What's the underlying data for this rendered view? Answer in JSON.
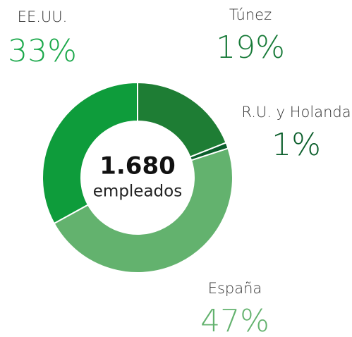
{
  "chart_data": {
    "type": "donut",
    "categories": [
      "Túnez",
      "R.U. y Holanda",
      "España",
      "EE.UU."
    ],
    "values": [
      19,
      1,
      47,
      33
    ],
    "value_labels": [
      "19%",
      "1%",
      "47%",
      "33%"
    ],
    "colors": [
      "#1e7d34",
      "#0b5e2b",
      "#63b26e",
      "#0e9c3b"
    ],
    "label_colors": [
      "#177a38",
      "#0b5e2b",
      "#63b26e",
      "#1aa84a"
    ],
    "total": "1.680",
    "total_caption": "empleados"
  }
}
